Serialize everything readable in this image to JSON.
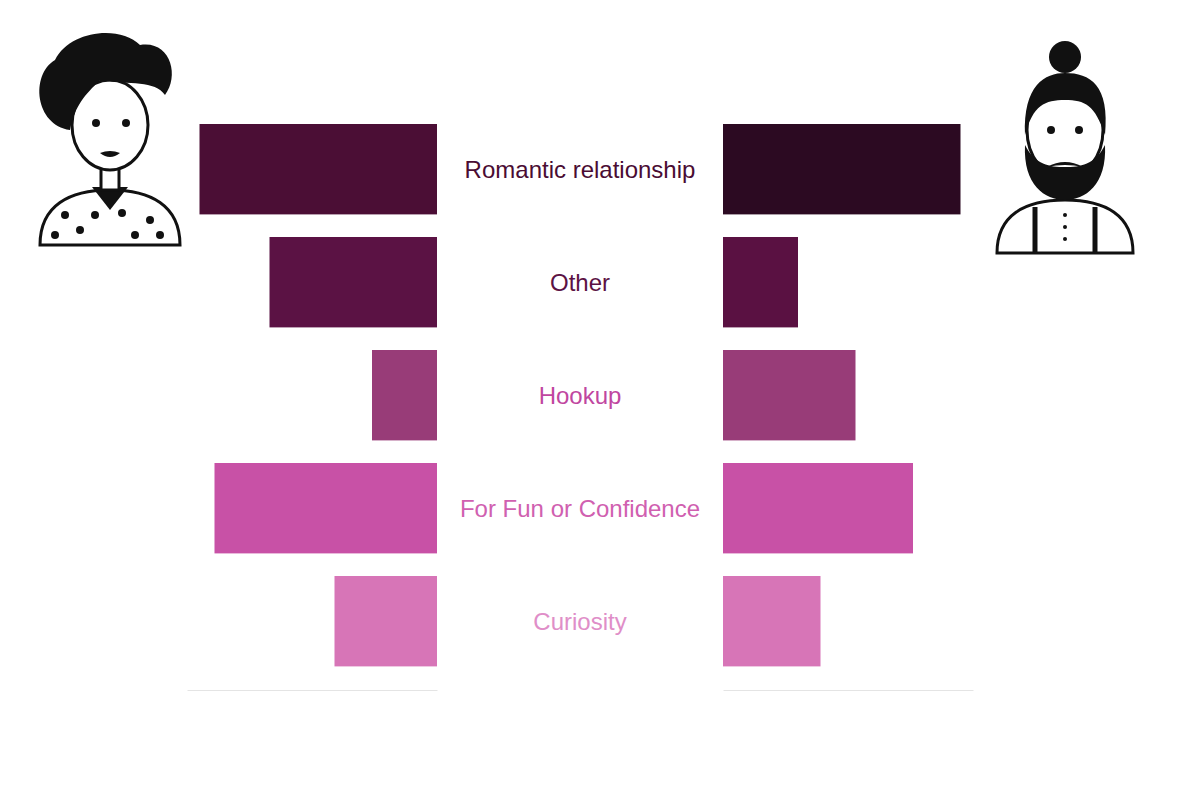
{
  "chart_data": {
    "type": "bar",
    "orientation": "horizontal",
    "categories": [
      "Romantic relationship",
      "Other",
      "Hookup",
      "For Fun or Confidence",
      "Curiosity"
    ],
    "series": [
      {
        "colors": [
          "#4b0e35",
          "#5b1244",
          "#983c78",
          "#c851a6",
          "#d775b7"
        ],
        "values": [
          47.5,
          33.5,
          13,
          44.5,
          20.5
        ]
      },
      {
        "colors": [
          "#2c0a22",
          "#5a1142",
          "#983c78",
          "#c851a6",
          "#d775b7"
        ],
        "values": [
          47.5,
          15,
          26.5,
          38,
          19.5
        ]
      }
    ],
    "xlim": [
      0,
      50
    ],
    "tick_labels": false
  }
}
